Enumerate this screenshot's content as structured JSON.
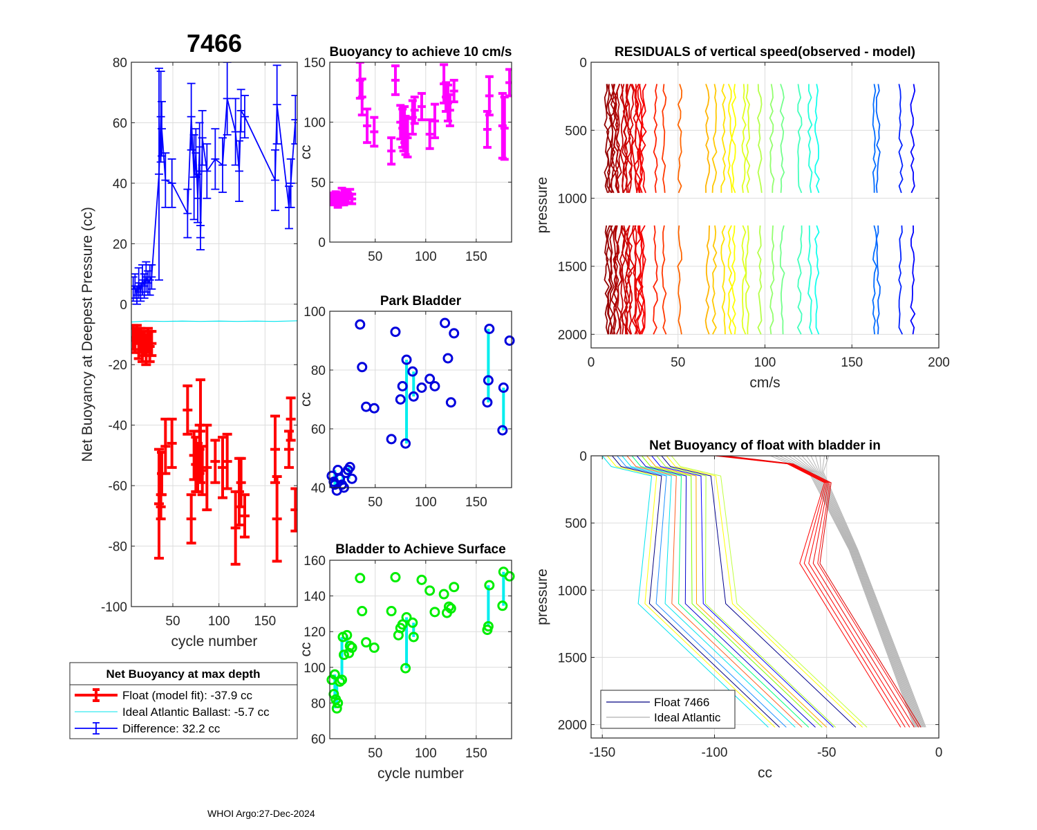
{
  "figure": {
    "float_id": "7466",
    "footer": "WHOI Argo:27-Dec-2024"
  },
  "chart_data": [
    {
      "id": "net-buoyancy-deepest",
      "type": "line",
      "title": "7466",
      "xlabel": "cycle number",
      "ylabel": "Net Buoyancy at Deepest Pressure (cc)",
      "xlim": [
        5,
        185
      ],
      "ylim": [
        -100,
        80
      ],
      "xticks": [
        50,
        100,
        150
      ],
      "yticks": [
        -100,
        -80,
        -60,
        -40,
        -20,
        0,
        20,
        40,
        60,
        80
      ],
      "grid": true,
      "series": [
        {
          "name": "Difference",
          "color": "#0000ff",
          "style": "errorbar-line",
          "x": [
            7,
            9,
            11,
            13,
            15,
            17,
            19,
            21,
            23,
            25,
            27,
            35,
            37,
            38,
            42,
            49,
            66,
            70,
            73,
            75,
            77,
            79,
            80,
            82,
            87,
            96,
            104,
            109,
            118,
            122,
            124,
            128,
            161,
            163,
            176,
            178,
            183
          ],
          "y": [
            5,
            6,
            3,
            7,
            4,
            8,
            6,
            9,
            7,
            8,
            9,
            43,
            62,
            58,
            41,
            40,
            30,
            62,
            42,
            50,
            35,
            52,
            22,
            55,
            44,
            48,
            46,
            68,
            57,
            44,
            64,
            62,
            41,
            66,
            32,
            40,
            61
          ],
          "err": [
            4,
            4,
            3,
            5,
            3,
            5,
            4,
            5,
            4,
            5,
            4,
            35,
            15,
            9,
            9,
            8,
            8,
            11,
            14,
            8,
            8,
            8,
            4,
            9,
            9,
            10,
            9,
            12,
            11,
            10,
            7,
            7,
            10,
            13,
            7,
            8,
            8
          ]
        },
        {
          "name": "Ideal Atlantic Ballast",
          "color": "#00e5ee",
          "style": "line",
          "x": [
            5,
            20,
            40,
            60,
            80,
            100,
            120,
            140,
            160,
            185
          ],
          "y": [
            -5.9,
            -5.6,
            -5.7,
            -5.6,
            -5.7,
            -5.6,
            -5.7,
            -5.6,
            -5.7,
            -5.5
          ]
        },
        {
          "name": "Float (model fit)",
          "color": "#ff0000",
          "style": "errorbar",
          "x": [
            7,
            9,
            11,
            13,
            15,
            17,
            19,
            21,
            23,
            25,
            27,
            35,
            37,
            38,
            42,
            49,
            66,
            70,
            73,
            75,
            77,
            79,
            80,
            82,
            87,
            96,
            104,
            109,
            118,
            122,
            124,
            128,
            161,
            163,
            176,
            178,
            183
          ],
          "y": [
            -11,
            -12,
            -10,
            -13,
            -12,
            -14,
            -13,
            -15,
            -12,
            -14,
            -13,
            -66,
            -67,
            -56,
            -47,
            -46,
            -35,
            -71,
            -50,
            -53,
            -54,
            -48,
            -42,
            -55,
            -54,
            -52,
            -54,
            -52,
            -74,
            -62,
            -59,
            -70,
            -48,
            -71,
            -48,
            -38,
            -68
          ],
          "err": [
            4,
            4,
            3,
            5,
            4,
            5,
            4,
            5,
            4,
            5,
            4,
            18,
            4,
            7,
            9,
            8,
            8,
            8,
            8,
            9,
            8,
            8,
            17,
            8,
            14,
            7,
            10,
            9,
            12,
            11,
            8,
            7,
            11,
            14,
            6,
            7,
            7
          ]
        }
      ],
      "legend": {
        "title": "Net Buoyancy at max depth",
        "position": "below",
        "entries": [
          {
            "label": "Float (model fit): -37.9 cc",
            "color": "#ff0000",
            "style": "errorbar-thick"
          },
          {
            "label": "Ideal Atlantic Ballast:  -5.7 cc",
            "color": "#00e5ee",
            "style": "line"
          },
          {
            "label": "Difference:  32.2 cc",
            "color": "#0000ff",
            "style": "errorbar"
          }
        ]
      }
    },
    {
      "id": "buoyancy-10cms",
      "type": "scatter",
      "title": "Buoyancy to achieve 10 cm/s",
      "xlabel": "",
      "ylabel": "cc",
      "xlim": [
        5,
        185
      ],
      "ylim": [
        0,
        150
      ],
      "xticks": [
        50,
        100,
        150
      ],
      "yticks": [
        0,
        50,
        100,
        150
      ],
      "grid": true,
      "series": [
        {
          "name": "buoyancy",
          "color": "#ff00ff",
          "style": "errorbar",
          "x": [
            7,
            9,
            11,
            13,
            15,
            17,
            19,
            21,
            23,
            25,
            27,
            35,
            37,
            42,
            49,
            66,
            70,
            75,
            77,
            78,
            79,
            80,
            82,
            87,
            89,
            96,
            104,
            109,
            118,
            120,
            122,
            124,
            128,
            161,
            163,
            176,
            178,
            183
          ],
          "y": [
            37,
            35,
            38,
            33,
            36,
            40,
            35,
            38,
            37,
            40,
            36,
            135,
            121,
            97,
            92,
            76,
            135,
            100,
            95,
            90,
            98,
            89,
            87,
            104,
            110,
            113,
            90,
            101,
            132,
            121,
            116,
            110,
            126,
            94,
            122,
            97,
            95,
            133
          ],
          "err": [
            4,
            4,
            4,
            4,
            5,
            5,
            4,
            5,
            4,
            4,
            4,
            15,
            15,
            14,
            12,
            11,
            12,
            14,
            16,
            14,
            15,
            16,
            16,
            14,
            11,
            11,
            12,
            14,
            16,
            12,
            15,
            13,
            9,
            15,
            16,
            27,
            26,
            11
          ]
        }
      ]
    },
    {
      "id": "park-bladder",
      "type": "scatter",
      "title": "Park Bladder",
      "xlabel": "",
      "ylabel": "cc",
      "xlim": [
        5,
        185
      ],
      "ylim": [
        40,
        100
      ],
      "xticks": [
        50,
        100,
        150
      ],
      "yticks": [
        40,
        60,
        80,
        100
      ],
      "grid": true,
      "markers": {
        "color": "#0000dd",
        "x": [
          7,
          9,
          10,
          12,
          13,
          15,
          17,
          19,
          21,
          23,
          25,
          27,
          35,
          37,
          41,
          49,
          66,
          70,
          75,
          77,
          80,
          81,
          87,
          88,
          96,
          104,
          109,
          119,
          122,
          125,
          128,
          161,
          162,
          163,
          176,
          177,
          183
        ],
        "y": [
          44,
          42,
          41,
          39,
          46,
          43,
          41,
          40,
          45,
          46,
          47,
          43,
          95.5,
          81,
          67.5,
          67,
          56.5,
          93,
          70,
          74.5,
          55,
          83.5,
          79.5,
          71,
          74,
          77,
          74.5,
          96,
          84,
          69,
          92.5,
          69,
          76.5,
          94,
          59.5,
          74,
          90
        ]
      },
      "connectors": {
        "color": "#00eeee",
        "segments": [
          {
            "x": 10,
            "y0": 39,
            "y1": 46
          },
          {
            "x": 12,
            "y0": 40,
            "y1": 44
          },
          {
            "x": 18,
            "y0": 41,
            "y1": 44
          },
          {
            "x": 24,
            "y0": 43,
            "y1": 47
          },
          {
            "x": 81,
            "y0": 55,
            "y1": 83.5
          },
          {
            "x": 88,
            "y0": 71,
            "y1": 79.5
          },
          {
            "x": 162,
            "y0": 69,
            "y1": 94
          },
          {
            "x": 177,
            "y0": 59.5,
            "y1": 74
          }
        ]
      }
    },
    {
      "id": "bladder-surface",
      "type": "scatter",
      "title": "Bladder to Achieve Surface",
      "xlabel": "cycle number",
      "ylabel": "cc",
      "xlim": [
        5,
        185
      ],
      "ylim": [
        60,
        160
      ],
      "xticks": [
        50,
        100,
        150
      ],
      "yticks": [
        60,
        80,
        100,
        120,
        140,
        160
      ],
      "grid": true,
      "markers": {
        "color": "#00ee00",
        "x": [
          7,
          9,
          10,
          11,
          12,
          13,
          15,
          17,
          18,
          19,
          22,
          24,
          25,
          27,
          35,
          37,
          41,
          49,
          66,
          70,
          73,
          75,
          77,
          80,
          81,
          87,
          88,
          96,
          104,
          109,
          118,
          121,
          123,
          125,
          128,
          161,
          162,
          163,
          176,
          177,
          183
        ],
        "y": [
          93,
          85,
          96,
          82,
          77,
          80,
          92,
          93,
          117,
          107,
          118,
          108,
          112,
          111,
          150,
          131.5,
          114,
          111,
          131.5,
          150.5,
          118,
          122,
          124,
          99.5,
          128,
          125,
          117,
          149,
          143,
          131,
          141,
          130.5,
          134,
          133,
          145,
          121,
          123,
          146,
          134.5,
          153.5,
          151
        ]
      },
      "connectors": {
        "color": "#00eeee",
        "segments": [
          {
            "x": 10,
            "y0": 77,
            "y1": 96
          },
          {
            "x": 12,
            "y0": 80,
            "y1": 90
          },
          {
            "x": 17,
            "y0": 93,
            "y1": 117
          },
          {
            "x": 22,
            "y0": 108,
            "y1": 118
          },
          {
            "x": 81,
            "y0": 99.5,
            "y1": 128
          },
          {
            "x": 88,
            "y0": 117,
            "y1": 125
          },
          {
            "x": 162,
            "y0": 123,
            "y1": 146
          },
          {
            "x": 177,
            "y0": 134.5,
            "y1": 153.5
          }
        ]
      }
    },
    {
      "id": "residuals",
      "type": "line",
      "title": "RESIDUALS of vertical speed(observed - model)",
      "xlabel": "cm/s",
      "ylabel": "pressure",
      "xlim": [
        0,
        200
      ],
      "ylim": [
        2100,
        0
      ],
      "y_reversed": true,
      "xticks": [
        0,
        50,
        100,
        150,
        200
      ],
      "yticks": [
        0,
        500,
        1000,
        1500,
        2000
      ],
      "grid": true,
      "colormap": "jet (cycle-ordered, red = early profiles, blue = late profiles)",
      "profile_offsets_cm_s": [
        9,
        11,
        13,
        15,
        18,
        20,
        22,
        25,
        27,
        29,
        37,
        42,
        51,
        67,
        71,
        76,
        80,
        82,
        88,
        90,
        97,
        104,
        110,
        120,
        126,
        130,
        163,
        165,
        178,
        185
      ],
      "pressure_range_upper": [
        160,
        1000
      ],
      "pressure_range_lower": [
        1200,
        2000
      ]
    },
    {
      "id": "net-buoyancy-profile",
      "type": "line",
      "title": "Net Buoyancy of float with bladder in",
      "xlabel": "cc",
      "ylabel": "pressure",
      "xlim": [
        -155,
        0
      ],
      "ylim": [
        2100,
        0
      ],
      "y_reversed": true,
      "xticks": [
        -150,
        -100,
        -50,
        0
      ],
      "yticks": [
        0,
        500,
        1000,
        1500,
        2000
      ],
      "grid": true,
      "legend": {
        "position": "bottom-left",
        "entries": [
          {
            "label": "Float 7466",
            "color": "#000080"
          },
          {
            "label": "Ideal Atlantic",
            "color": "#b0b0b0"
          }
        ]
      },
      "float_profiles_end_cc": [
        -76,
        -73,
        -71,
        -68,
        -64,
        -61,
        -58,
        -55,
        -52,
        -50,
        -47,
        -46,
        -37,
        -34,
        -32,
        -17,
        -15,
        -13,
        -11,
        -9,
        -8
      ],
      "float_profiles_colors": [
        "#00e5ee",
        "#ffff00",
        "#000080",
        "#1e90ff",
        "#00e5ee",
        "#ff6020",
        "#00ff7f",
        "#0000cd",
        "#7fff00",
        "#ffa500",
        "#0000ff",
        "#adff2f",
        "#00008b",
        "#ffff00",
        "#c0ff40",
        "#ff0000",
        "#ff0000",
        "#ff0000",
        "#ee0000",
        "#ff1010",
        "#dd0000"
      ],
      "ideal_atlantic_end_cc": [
        -10,
        -8,
        -6
      ]
    }
  ]
}
